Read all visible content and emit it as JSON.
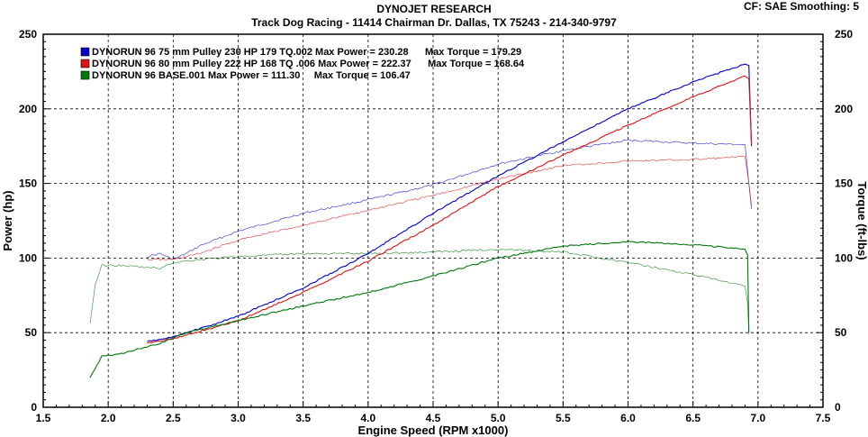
{
  "header": {
    "title": "DYNOJET RESEARCH",
    "subtitle": "Track Dog Racing - 11414 Chairman Dr. Dallas, TX 75243 - 214-340-9797",
    "correction": "CF: SAE  Smoothing: 5"
  },
  "chart_data": {
    "type": "line",
    "xlabel": "Engine Speed (RPM x1000)",
    "ylabel": "Power (hp)",
    "ylabel_right": "Torque (ft-lbs)",
    "xlim": [
      1.5,
      7.5
    ],
    "ylim": [
      0,
      250
    ],
    "ylim_right": [
      0,
      250
    ],
    "x_ticks": [
      "1.5",
      "2.0",
      "2.5",
      "3.0",
      "3.5",
      "4.0",
      "4.5",
      "5.0",
      "5.5",
      "6.0",
      "6.5",
      "7.0",
      "7.5"
    ],
    "y_ticks": [
      "0",
      "50",
      "100",
      "150",
      "200",
      "250"
    ],
    "y_ticks_right": [
      "0",
      "50",
      "100",
      "150",
      "200",
      "250"
    ],
    "grid": true,
    "legend_position": "top-left",
    "series": [
      {
        "name": "DYNORUN 96 75 mm Pulley 230 HP 179 TQ.002 Max Power = 230.28      Max Torque = 179.29",
        "color": "#0000c8",
        "power": [
          [
            2.3,
            44
          ],
          [
            2.5,
            47
          ],
          [
            3.0,
            61
          ],
          [
            3.5,
            80
          ],
          [
            4.0,
            103
          ],
          [
            4.5,
            130
          ],
          [
            5.0,
            155
          ],
          [
            5.5,
            178
          ],
          [
            6.0,
            200
          ],
          [
            6.5,
            218
          ],
          [
            6.9,
            230
          ],
          [
            6.93,
            229
          ],
          [
            6.95,
            175
          ]
        ],
        "torque": [
          [
            2.3,
            101
          ],
          [
            2.4,
            103
          ],
          [
            2.5,
            99
          ],
          [
            2.6,
            103
          ],
          [
            2.7,
            108
          ],
          [
            3.0,
            118
          ],
          [
            3.5,
            130
          ],
          [
            4.0,
            139
          ],
          [
            4.5,
            149
          ],
          [
            5.0,
            163
          ],
          [
            5.5,
            172
          ],
          [
            6.0,
            179
          ],
          [
            6.5,
            177
          ],
          [
            6.9,
            176
          ],
          [
            6.93,
            150
          ],
          [
            6.95,
            133
          ]
        ]
      },
      {
        "name": "DYNORUN 96 80 mm Pulley 222 HP 168 TQ .006 Max Power = 222.37      Max Torque = 168.64",
        "color": "#dc1414",
        "power": [
          [
            2.3,
            43
          ],
          [
            2.5,
            46
          ],
          [
            3.0,
            58
          ],
          [
            3.5,
            77
          ],
          [
            4.0,
            98
          ],
          [
            4.5,
            122
          ],
          [
            5.0,
            148
          ],
          [
            5.5,
            169
          ],
          [
            6.0,
            189
          ],
          [
            6.5,
            208
          ],
          [
            6.9,
            222
          ],
          [
            6.93,
            220
          ],
          [
            6.95,
            176
          ]
        ],
        "torque": [
          [
            2.3,
            99
          ],
          [
            2.5,
            99
          ],
          [
            2.7,
            103
          ],
          [
            3.0,
            112
          ],
          [
            3.5,
            122
          ],
          [
            4.0,
            132
          ],
          [
            4.5,
            142
          ],
          [
            5.0,
            153
          ],
          [
            5.5,
            162
          ],
          [
            6.0,
            165
          ],
          [
            6.5,
            166
          ],
          [
            6.9,
            168
          ],
          [
            6.93,
            150
          ],
          [
            6.95,
            135
          ]
        ]
      },
      {
        "name": "DYNORUN 96 BASE.001 Max Power = 111.30     Max Torque = 106.47",
        "color": "#00780a",
        "power": [
          [
            1.86,
            20
          ],
          [
            1.95,
            34
          ],
          [
            2.1,
            36
          ],
          [
            2.4,
            43
          ],
          [
            2.6,
            50
          ],
          [
            3.0,
            58
          ],
          [
            3.5,
            68
          ],
          [
            4.0,
            77
          ],
          [
            4.5,
            88
          ],
          [
            5.0,
            100
          ],
          [
            5.5,
            108
          ],
          [
            6.0,
            111
          ],
          [
            6.5,
            109
          ],
          [
            6.9,
            106
          ],
          [
            6.92,
            102
          ],
          [
            6.93,
            50
          ]
        ],
        "torque": [
          [
            1.86,
            56
          ],
          [
            1.9,
            82
          ],
          [
            1.95,
            95
          ],
          [
            2.1,
            95
          ],
          [
            2.4,
            93
          ],
          [
            2.5,
            97
          ],
          [
            2.7,
            99
          ],
          [
            3.0,
            101
          ],
          [
            3.5,
            103
          ],
          [
            4.0,
            103
          ],
          [
            4.5,
            104
          ],
          [
            5.0,
            106
          ],
          [
            5.5,
            104
          ],
          [
            6.0,
            97
          ],
          [
            6.5,
            89
          ],
          [
            6.9,
            81
          ],
          [
            6.92,
            70
          ],
          [
            6.93,
            49
          ]
        ]
      }
    ]
  }
}
